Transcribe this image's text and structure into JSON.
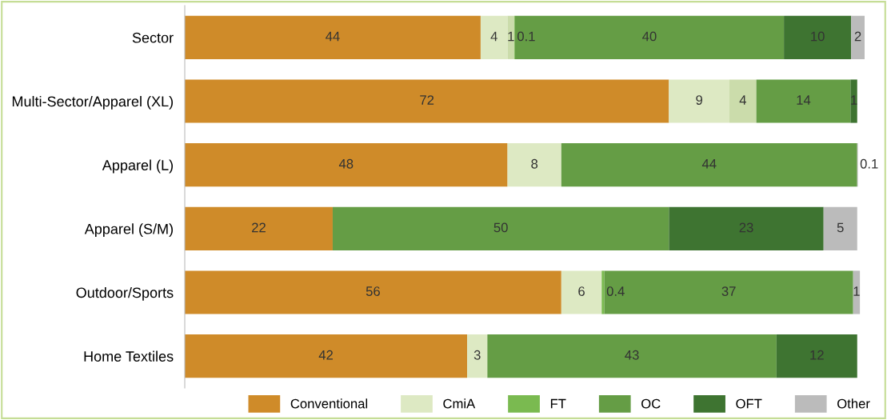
{
  "chart_data": {
    "type": "bar",
    "orientation": "horizontal",
    "stacked": true,
    "legend": "bottom right",
    "grid": false,
    "tick_labels": "y",
    "categories": [
      "Sector",
      "Multi-Sector/Apparel (XL)",
      "Apparel (L)",
      "Apparel (S/M)",
      "Outdoor/Sports",
      "Home Textiles"
    ],
    "series": [
      {
        "name": "Conventional",
        "color": "#cf8b29",
        "values": [
          44,
          72,
          48,
          22,
          56,
          42
        ],
        "value_labels": [
          "44",
          "72",
          "48",
          "22",
          "56",
          "42"
        ]
      },
      {
        "name": "CmiA",
        "color": "#dde9c3",
        "values": [
          4,
          9,
          8,
          null,
          6,
          3
        ],
        "value_labels": [
          "4",
          "9",
          "8",
          null,
          "6",
          "3"
        ]
      },
      {
        "color": "#cbdcab",
        "values": [
          1,
          4,
          null,
          null,
          null,
          null
        ],
        "value_labels": [
          "1",
          "4",
          null,
          null,
          null,
          null
        ]
      },
      {
        "name": "FT",
        "color": "#7aba50",
        "values": [
          0.1,
          null,
          null,
          null,
          0.4,
          null
        ],
        "value_labels": [
          "0.1",
          null,
          null,
          null,
          "0.4",
          null
        ]
      },
      {
        "name": "OC",
        "color": "#659d45",
        "values": [
          40,
          14,
          44,
          50,
          37,
          43
        ],
        "value_labels": [
          "40",
          "14",
          "44",
          "50",
          "37",
          "43"
        ]
      },
      {
        "name": "OFT",
        "color": "#3e7431",
        "values": [
          10,
          1,
          null,
          23,
          null,
          12
        ],
        "value_labels": [
          "10",
          "1",
          null,
          "23",
          null,
          "12"
        ]
      },
      {
        "name": "Other",
        "color": "#bbbbbb",
        "values": [
          2,
          null,
          0.1,
          5,
          1,
          null
        ],
        "value_labels": [
          "2",
          null,
          "0.1",
          "5",
          "1",
          null
        ]
      }
    ]
  }
}
